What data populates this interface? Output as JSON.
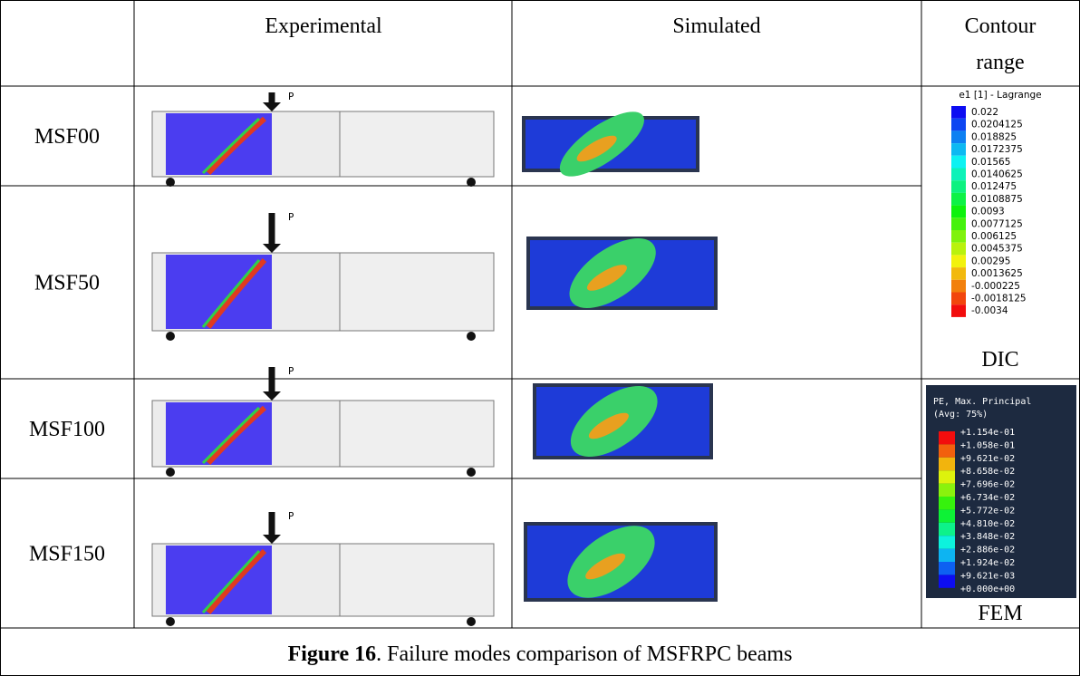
{
  "table": {
    "columns": [
      "Experimental",
      "Simulated"
    ],
    "contour_header": [
      "Contour",
      "range"
    ],
    "rows": [
      "MSF00",
      "MSF50",
      "MSF100",
      "MSF150"
    ],
    "load_label": "P",
    "dic_legend": {
      "title": "e1 [1] - Lagrange",
      "values": [
        "0.022",
        "0.0204125",
        "0.018825",
        "0.0172375",
        "0.01565",
        "0.0140625",
        "0.012475",
        "0.0108875",
        "0.0093",
        "0.0077125",
        "0.006125",
        "0.0045375",
        "0.00295",
        "0.0013625",
        "-0.000225",
        "-0.0018125",
        "-0.0034"
      ],
      "label": "DIC"
    },
    "fem_legend": {
      "title": "PE, Max. Principal",
      "subtitle": "(Avg: 75%)",
      "values": [
        "+1.154e-01",
        "+1.058e-01",
        "+9.621e-02",
        "+8.658e-02",
        "+7.696e-02",
        "+6.734e-02",
        "+5.772e-02",
        "+4.810e-02",
        "+3.848e-02",
        "+2.886e-02",
        "+1.924e-02",
        "+9.621e-03",
        "+0.000e+00"
      ],
      "label": "FEM"
    }
  },
  "caption": {
    "number": "Figure 16",
    "text": ". Failure modes comparison of MSFRPC beams"
  }
}
